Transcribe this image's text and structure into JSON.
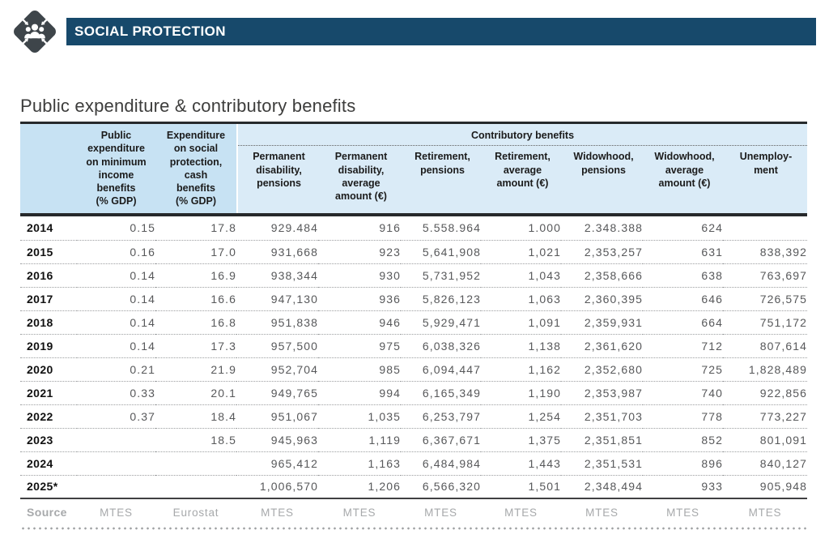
{
  "banner": {
    "title": "SOCIAL PROTECTION",
    "icon": "people-converge-icon",
    "bg_color": "#17496b"
  },
  "page": {
    "title": "Public expenditure & contributory benefits"
  },
  "colors": {
    "header_blue_left": "#c7e2f3",
    "header_blue_group": "#daebf7",
    "bar_dark": "#26292b",
    "value_text": "#57585a",
    "source_text": "#a7a9ab"
  },
  "table": {
    "group_header": "Contributory benefits",
    "col_headers": [
      "Public\nexpenditure\non minimum\nincome\nbenefits\n(% GDP)",
      "Expenditure\non social\nprotection,\ncash\nbenefits\n(% GDP)"
    ],
    "group_col_headers": [
      "Permanent\ndisability,\npensions",
      "Permanent\ndisability,\naverage\namount (€)",
      "Retirement,\npensions",
      "Retirement,\naverage\namount (€)",
      "Widowhood,\npensions",
      "Widowhood,\naverage\namount (€)",
      "Unemploy-\nment"
    ],
    "rows": [
      {
        "year": "2014",
        "values": [
          "0.15",
          "17.8",
          "929.484",
          "916",
          "5.558.964",
          "1.000",
          "2.348.388",
          "624",
          ""
        ]
      },
      {
        "year": "2015",
        "values": [
          "0.16",
          "17.0",
          "931,668",
          "923",
          "5,641,908",
          "1,021",
          "2,353,257",
          "631",
          "838,392"
        ]
      },
      {
        "year": "2016",
        "values": [
          "0.14",
          "16.9",
          "938,344",
          "930",
          "5,731,952",
          "1,043",
          "2,358,666",
          "638",
          "763,697"
        ]
      },
      {
        "year": "2017",
        "values": [
          "0.14",
          "16.6",
          "947,130",
          "936",
          "5,826,123",
          "1,063",
          "2,360,395",
          "646",
          "726,575"
        ]
      },
      {
        "year": "2018",
        "values": [
          "0.14",
          "16.8",
          "951,838",
          "946",
          "5,929,471",
          "1,091",
          "2,359,931",
          "664",
          "751,172"
        ]
      },
      {
        "year": "2019",
        "values": [
          "0.14",
          "17.3",
          "957,500",
          "975",
          "6,038,326",
          "1,138",
          "2,361,620",
          "712",
          "807,614"
        ]
      },
      {
        "year": "2020",
        "values": [
          "0.21",
          "21.9",
          "952,704",
          "985",
          "6,094,447",
          "1,162",
          "2,352,680",
          "725",
          "1,828,489"
        ]
      },
      {
        "year": "2021",
        "values": [
          "0.33",
          "20.1",
          "949,765",
          "994",
          "6,165,349",
          "1,190",
          "2,353,987",
          "740",
          "922,856"
        ]
      },
      {
        "year": "2022",
        "values": [
          "0.37",
          "18.4",
          "951,067",
          "1,035",
          "6,253,797",
          "1,254",
          "2,351,703",
          "778",
          "773,227"
        ]
      },
      {
        "year": "2023",
        "values": [
          "",
          "18.5",
          "945,963",
          "1,119",
          "6,367,671",
          "1,375",
          "2,351,851",
          "852",
          "801,091"
        ]
      },
      {
        "year": "2024",
        "values": [
          "",
          "",
          "965,412",
          "1,163",
          "6,484,984",
          "1,443",
          "2,351,531",
          "896",
          "840,127"
        ]
      },
      {
        "year": "2025*",
        "values": [
          "",
          "",
          "1,006,570",
          "1,206",
          "6,566,320",
          "1,501",
          "2,348,494",
          "933",
          "905,948"
        ]
      }
    ],
    "source": {
      "label": "Source",
      "values": [
        "MTES",
        "Eurostat",
        "MTES",
        "MTES",
        "MTES",
        "MTES",
        "MTES",
        "MTES",
        "MTES"
      ]
    }
  }
}
